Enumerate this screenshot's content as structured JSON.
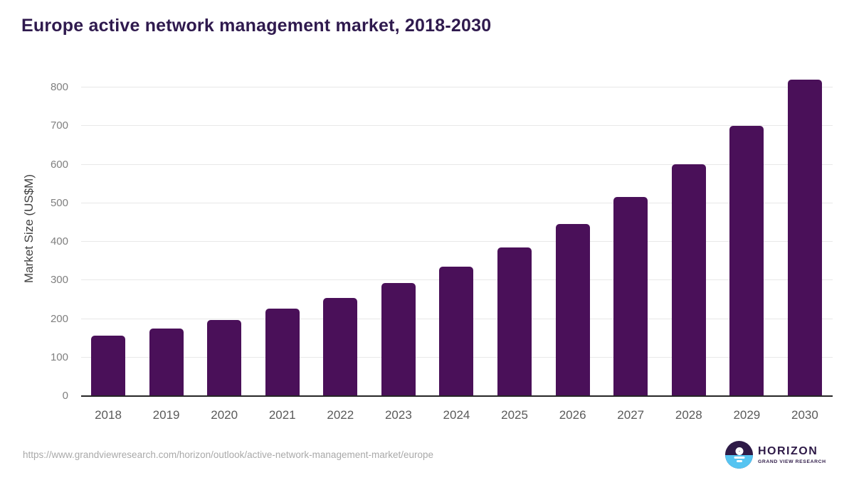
{
  "header": {
    "title": "Europe active network management market, 2018-2030"
  },
  "chart_data": {
    "type": "bar",
    "categories": [
      "2018",
      "2019",
      "2020",
      "2021",
      "2022",
      "2023",
      "2024",
      "2025",
      "2026",
      "2027",
      "2028",
      "2029",
      "2030"
    ],
    "values": [
      156,
      175,
      197,
      226,
      255,
      293,
      336,
      385,
      446,
      516,
      601,
      700,
      821
    ],
    "title": "Europe active network management market, 2018-2030",
    "xlabel": "",
    "ylabel": "Market Size (US$M)",
    "ylim": [
      0,
      800
    ],
    "yticks": [
      0,
      100,
      200,
      300,
      400,
      500,
      600,
      700,
      800
    ],
    "grid": true,
    "legend": false,
    "bar_color": "#4a1059"
  },
  "footer": {
    "source_url": "https://www.grandviewresearch.com/horizon/outlook/active-network-management-market/europe",
    "logo": {
      "name": "HORIZON",
      "subtitle": "GRAND VIEW RESEARCH"
    }
  },
  "colors": {
    "title-color": "#2f1a4e",
    "bar-color": "#4a1059",
    "grid-color": "#e8e8e8",
    "axis-color": "#262626",
    "ytick-color": "#7f7f7f",
    "xtick-color": "#5a5a5a",
    "ylabel-color": "#404040",
    "url-color": "#a9a9a9",
    "logo-purple": "#2e1a47",
    "logo-blue": "#56c4f1"
  }
}
